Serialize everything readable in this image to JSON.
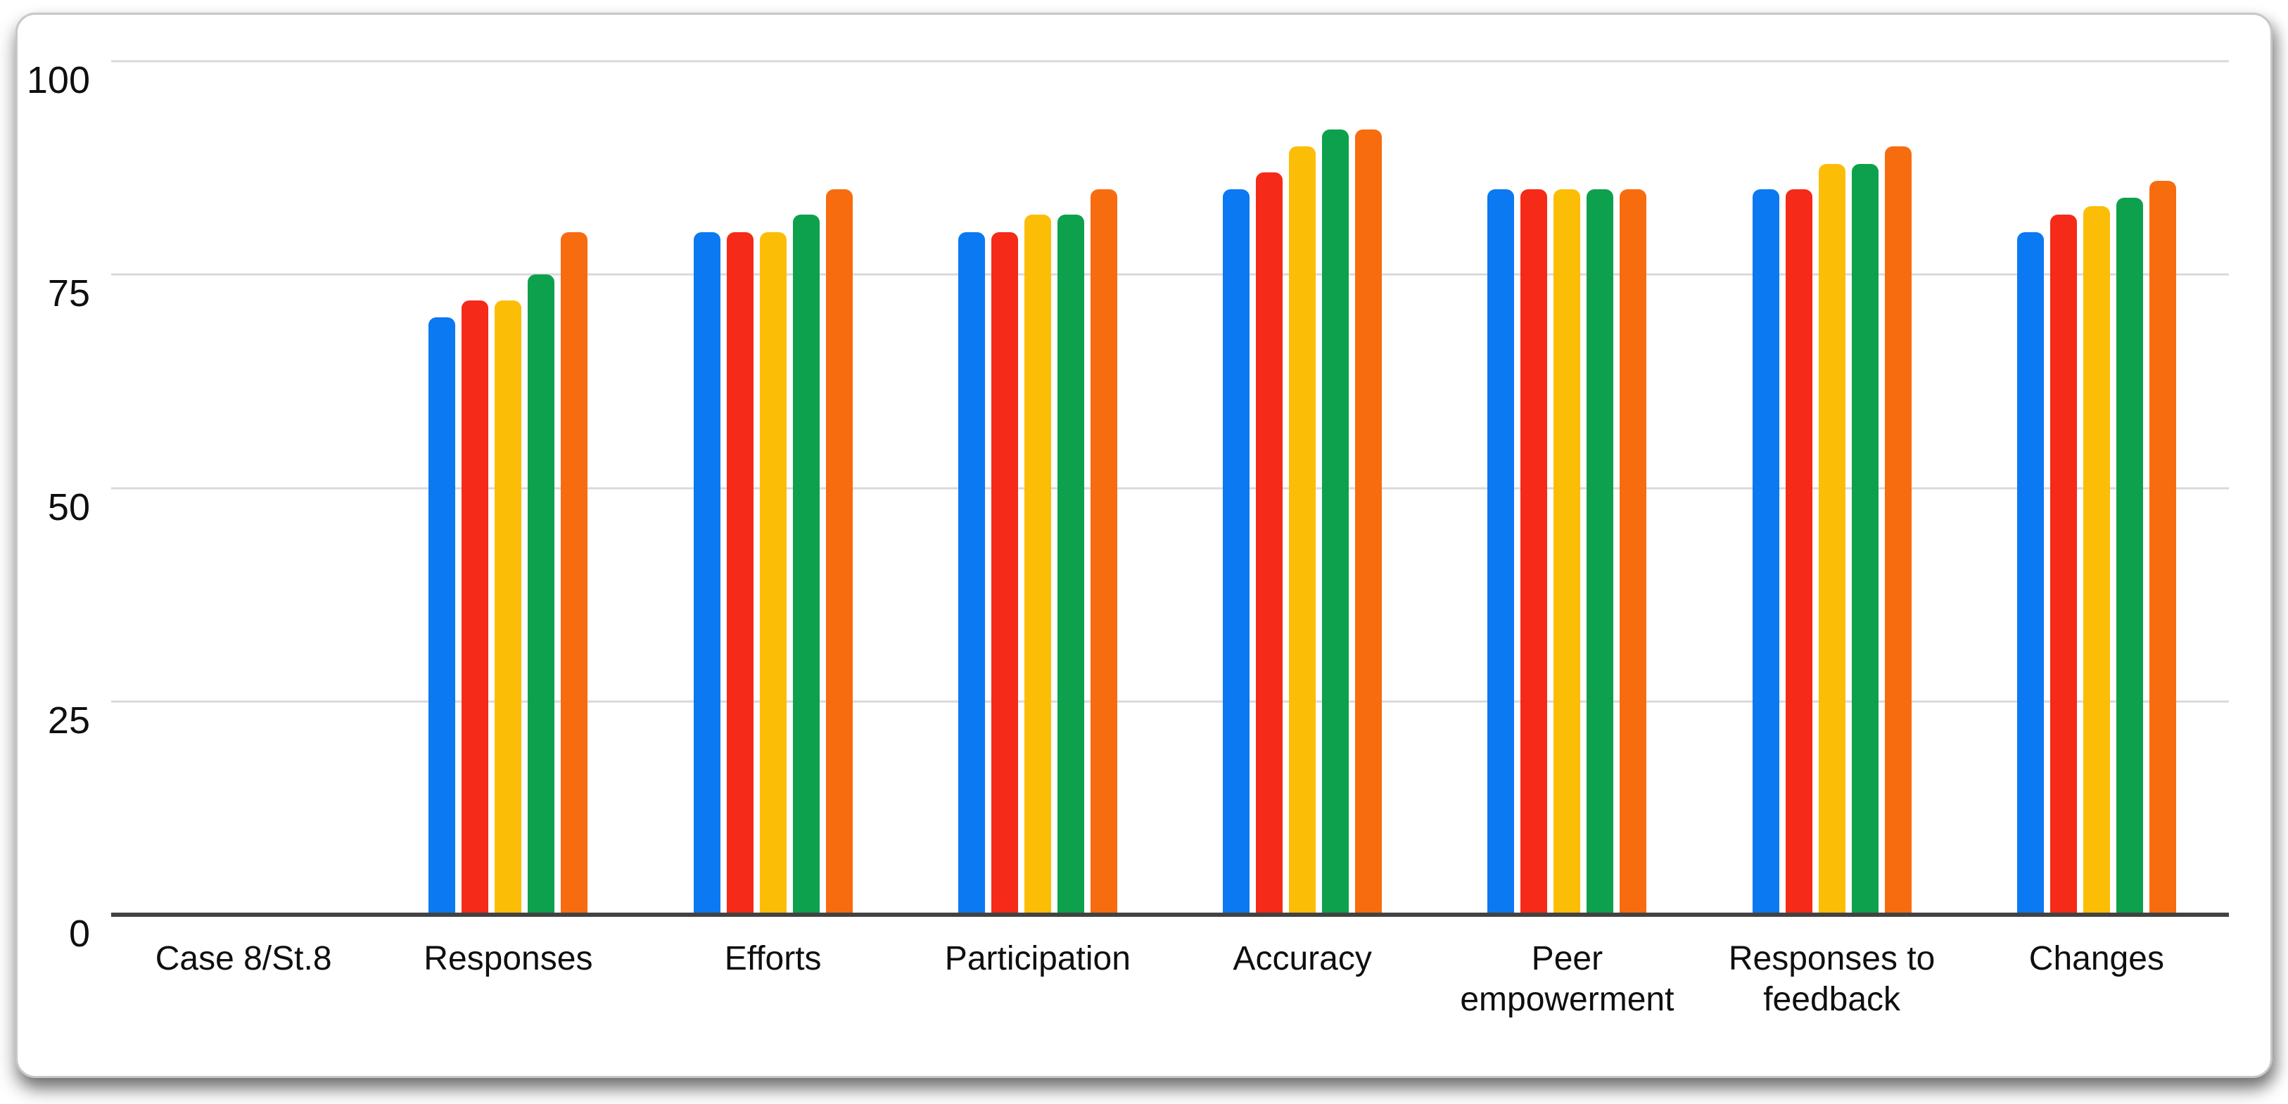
{
  "chart_data": {
    "type": "bar",
    "title": "",
    "xlabel": "",
    "ylabel": "",
    "categories": [
      "Case 8/St.8",
      "Responses",
      "Efforts",
      "Participation",
      "Accuracy",
      "Peer empowerment",
      "Responses to feedback",
      "Changes"
    ],
    "series": [
      {
        "color": "#0b79f2",
        "values": [
          0,
          70,
          80,
          80,
          85,
          85,
          85,
          80
        ]
      },
      {
        "color": "#f52a18",
        "values": [
          0,
          72,
          80,
          80,
          87,
          85,
          85,
          82
        ]
      },
      {
        "color": "#fcbd06",
        "values": [
          0,
          72,
          80,
          82,
          90,
          85,
          88,
          83
        ]
      },
      {
        "color": "#0da14d",
        "values": [
          0,
          75,
          82,
          82,
          92,
          85,
          88,
          84
        ]
      },
      {
        "color": "#f86c10",
        "values": [
          0,
          80,
          85,
          85,
          92,
          85,
          90,
          86
        ]
      }
    ],
    "ylim": [
      0,
      100
    ],
    "yticks": [
      0,
      25,
      50,
      75,
      100
    ],
    "y_tick_labels": [
      "0",
      "25",
      "50",
      "75",
      "100"
    ],
    "grid": true,
    "legend": "none"
  },
  "styles": {
    "grid_color": "#d9d9d9",
    "axis_color": "#424242",
    "text_color": "#0f0f0f",
    "card_background": "#ffffff",
    "card_border": "#c7c7c7"
  }
}
